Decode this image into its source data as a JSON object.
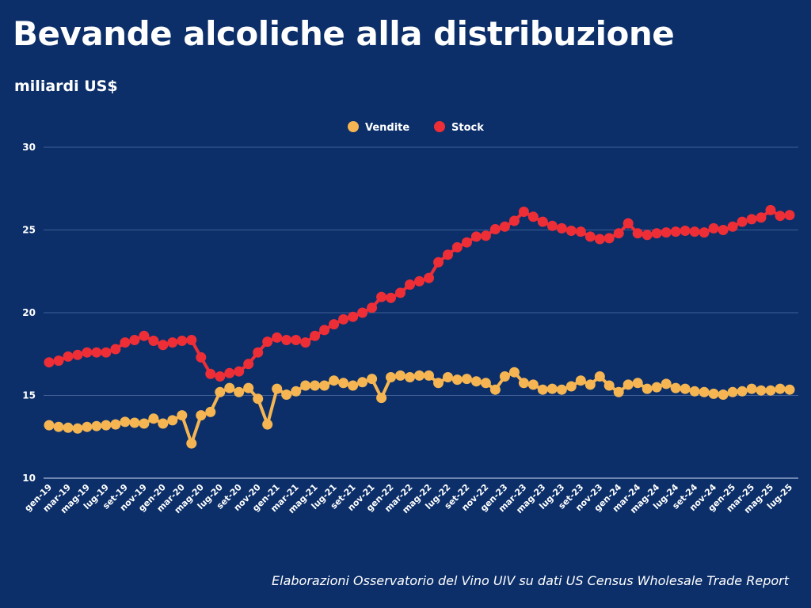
{
  "colors": {
    "background": "#0c2f69",
    "vendite": "#f5b553",
    "stock": "#ee2e37",
    "grid": "#3f5f96"
  },
  "chart_data": {
    "type": "line",
    "title": "Bevande alcoliche alla distribuzione",
    "subtitle": "miliardi US$",
    "source": "Elaborazioni Osservatorio del Vino UIV su dati US Census Wholesale Trade Report",
    "legend_position": "top-center",
    "grid": true,
    "ylim": [
      10,
      30
    ],
    "yticks": [
      10,
      15,
      20,
      25,
      30
    ],
    "x_tick_labels": [
      "gen-19",
      "mar-19",
      "mag-19",
      "lug-19",
      "set-19",
      "nov-19",
      "gen-20",
      "mar-20",
      "mag-20",
      "lug-20",
      "set-20",
      "nov-20",
      "gen-21",
      "mar-21",
      "mag-21",
      "lug-21",
      "set-21",
      "nov-21",
      "gen-22",
      "mar-22",
      "mag-22",
      "lug-22",
      "set-22",
      "nov-22",
      "gen-23",
      "mar-23",
      "mag-23",
      "lug-23",
      "set-23",
      "nov-23",
      "gen-24",
      "mar-24",
      "mag-24",
      "lug-24",
      "set-24",
      "nov-24",
      "gen-25",
      "mar-25",
      "mag-25",
      "lug-25"
    ],
    "x_points": 79,
    "series": [
      {
        "name": "Vendite",
        "values": [
          13.2,
          13.1,
          13.05,
          13.0,
          13.1,
          13.15,
          13.2,
          13.25,
          13.4,
          13.35,
          13.3,
          13.6,
          13.3,
          13.5,
          13.8,
          12.1,
          13.8,
          14.0,
          15.2,
          15.45,
          15.2,
          15.45,
          14.8,
          13.25,
          15.4,
          15.05,
          15.25,
          15.6,
          15.6,
          15.6,
          15.9,
          15.75,
          15.6,
          15.8,
          16.0,
          14.85,
          16.1,
          16.2,
          16.1,
          16.2,
          16.2,
          15.75,
          16.1,
          15.95,
          16.0,
          15.85,
          15.75,
          15.35,
          16.15,
          16.4,
          15.75,
          15.65,
          15.35,
          15.4,
          15.35,
          15.55,
          15.9,
          15.65,
          16.15,
          15.6,
          15.2,
          15.65,
          15.75,
          15.4,
          15.5,
          15.7,
          15.45,
          15.4,
          15.25,
          15.2,
          15.1,
          15.05,
          15.2,
          15.25,
          15.4,
          15.3,
          15.3,
          15.4,
          15.35
        ]
      },
      {
        "name": "Stock",
        "values": [
          17.0,
          17.1,
          17.35,
          17.45,
          17.6,
          17.6,
          17.6,
          17.8,
          18.2,
          18.35,
          18.6,
          18.3,
          18.05,
          18.2,
          18.3,
          18.35,
          17.3,
          16.3,
          16.15,
          16.35,
          16.45,
          16.9,
          17.6,
          18.25,
          18.5,
          18.35,
          18.35,
          18.2,
          18.6,
          18.95,
          19.3,
          19.6,
          19.75,
          20.0,
          20.3,
          20.95,
          20.9,
          21.2,
          21.7,
          21.9,
          22.1,
          23.05,
          23.5,
          23.95,
          24.25,
          24.6,
          24.65,
          25.05,
          25.2,
          25.55,
          26.1,
          25.8,
          25.5,
          25.25,
          25.1,
          24.95,
          24.9,
          24.6,
          24.45,
          24.5,
          24.8,
          25.4,
          24.8,
          24.7,
          24.8,
          24.85,
          24.9,
          24.95,
          24.9,
          24.85,
          25.1,
          25.0,
          25.2,
          25.5,
          25.65,
          25.75,
          26.2,
          25.85,
          25.9
        ]
      }
    ]
  }
}
